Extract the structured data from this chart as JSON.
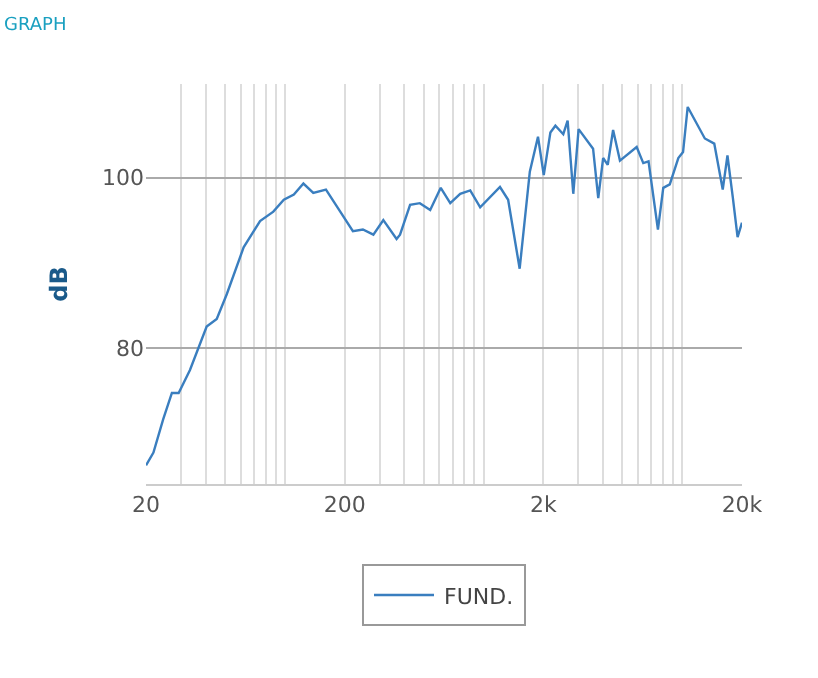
{
  "chart_data": {
    "type": "line",
    "title": "GRAPH",
    "ylabel": "dB",
    "x": [
      20,
      21.8,
      24.4,
      27,
      29.2,
      33.3,
      40.4,
      45.4,
      51,
      62,
      75,
      87.5,
      98.8,
      111,
      124,
      139,
      161,
      190,
      220,
      247,
      279,
      313,
      365,
      380,
      427,
      478,
      539,
      609,
      680,
      763,
      857,
      962,
      1210,
      1330,
      1520,
      1710,
      1880,
      2010,
      2170,
      2300,
      2520,
      2650,
      2830,
      3010,
      3560,
      3780,
      4000,
      4220,
      4490,
      4860,
      5900,
      6370,
      6770,
      7550,
      8030,
      8660,
      9560,
      10100,
      10660,
      13000,
      14500,
      16000,
      16900,
      18000,
      19000,
      20000
    ],
    "series": [
      {
        "name": "FUND.",
        "color": "#3a7ebf",
        "values": [
          66.2,
          67.7,
          71.6,
          74.7,
          74.7,
          77.4,
          82.5,
          83.4,
          86.3,
          91.8,
          94.9,
          96,
          97.4,
          98,
          99.3,
          98.2,
          98.6,
          96,
          93.7,
          93.9,
          93.3,
          95,
          92.8,
          93.3,
          96.8,
          97,
          96.2,
          98.8,
          97,
          98.1,
          98.5,
          96.5,
          98.9,
          97.4,
          89.3,
          100.7,
          104.8,
          100.3,
          105.3,
          106.1,
          105.1,
          106.7,
          98.1,
          105.7,
          103.4,
          97.6,
          102.3,
          101.5,
          105.6,
          102,
          103.6,
          101.7,
          101.9,
          93.9,
          98.8,
          99.2,
          102.3,
          103,
          108.3,
          104.6,
          104,
          98.6,
          102.6,
          97.6,
          93,
          94.7
        ]
      }
    ],
    "log": "x",
    "xlim": [
      20,
      20000
    ],
    "xticks": [
      20,
      {
        "value": 30,
        "label": null
      },
      {
        "value": 40,
        "label": null
      },
      {
        "value": 50,
        "label": null
      },
      {
        "value": 60,
        "label": null
      },
      {
        "value": 70,
        "label": null
      },
      {
        "value": 80,
        "label": null
      },
      {
        "value": 90,
        "label": null
      },
      {
        "value": 100,
        "label": null
      },
      200,
      {
        "value": 300,
        "label": null
      },
      {
        "value": 400,
        "label": null
      },
      {
        "value": 500,
        "label": null
      },
      {
        "value": 600,
        "label": null
      },
      {
        "value": 700,
        "label": null
      },
      {
        "value": 800,
        "label": null
      },
      {
        "value": 900,
        "label": null
      },
      {
        "value": 1000,
        "label": null
      },
      {
        "value": 2000,
        "label": "2k"
      },
      {
        "value": 3000,
        "label": null
      },
      {
        "value": 4000,
        "label": null
      },
      {
        "value": 5000,
        "label": null
      },
      {
        "value": 6000,
        "label": null
      },
      {
        "value": 7000,
        "label": null
      },
      {
        "value": 8000,
        "label": null
      },
      {
        "value": 9000,
        "label": null
      },
      {
        "value": 10000,
        "label": null
      },
      {
        "value": 20000,
        "label": "20k"
      }
    ],
    "ylim": [
      64,
      111
    ],
    "yticks": [
      80,
      100
    ],
    "grid": true,
    "legend": "bottom",
    "marker": "none",
    "line_style": "solid"
  }
}
